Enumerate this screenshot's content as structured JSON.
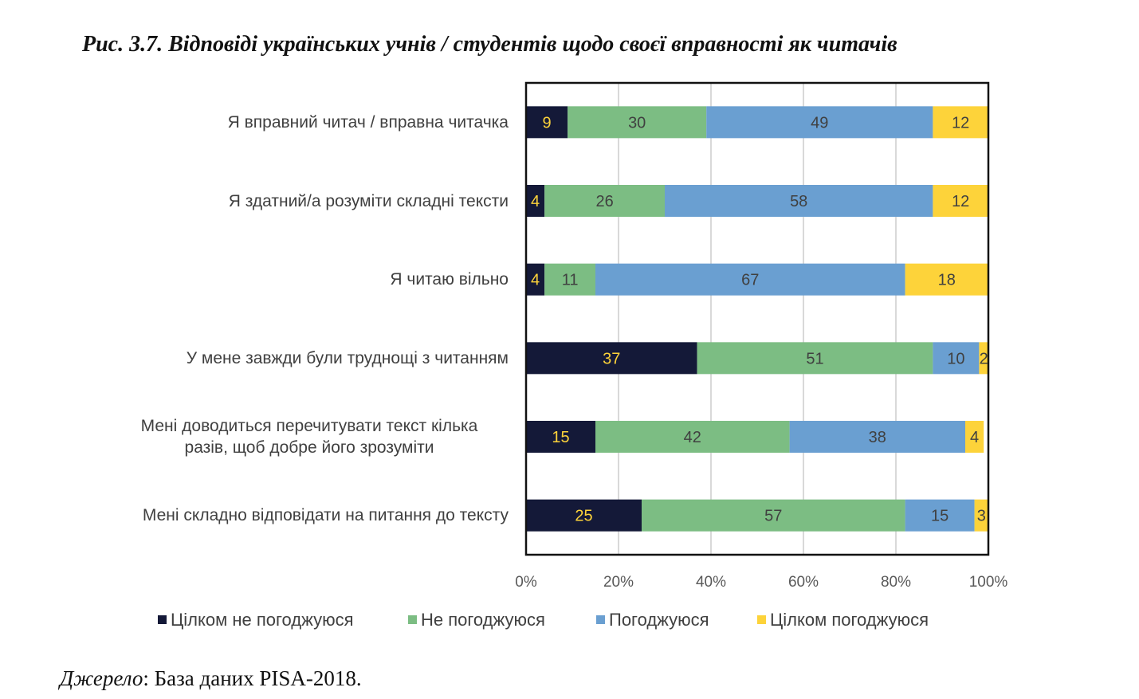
{
  "figure_title": "Рис. 3.7. Відповіді українських учнів / студентів щодо своєї вправності як читачів",
  "source": {
    "prefix": "Джерело",
    "text": ": База даних PISA-2018."
  },
  "colors": {
    "strongly_disagree": "#141938",
    "disagree": "#7cbd83",
    "agree": "#6a9fd1",
    "strongly_agree": "#fdd33a",
    "label_on_dark": "#fdd33a",
    "label_on_light": "#404040"
  },
  "chart_data": {
    "type": "bar",
    "orientation": "horizontal",
    "stacked": "percent",
    "categories": [
      [
        "Я вправний читач / вправна читачка"
      ],
      [
        "Я здатний/а розуміти складні тексти"
      ],
      [
        "Я читаю вільно"
      ],
      [
        "У мене завжди були труднощі з читанням"
      ],
      [
        "Мені доводиться перечитувати текст кілька",
        "разів, щоб добре його зрозуміти"
      ],
      [
        "Мені складно відповідати на питання до тексту"
      ]
    ],
    "series": [
      {
        "name": "Цілком не погоджуюся",
        "color": "#141938",
        "values": [
          9,
          4,
          4,
          37,
          15,
          25
        ]
      },
      {
        "name": "Не погоджуюся",
        "color": "#7cbd83",
        "values": [
          30,
          26,
          11,
          51,
          42,
          57
        ]
      },
      {
        "name": "Погоджуюся",
        "color": "#6a9fd1",
        "values": [
          49,
          58,
          67,
          10,
          38,
          15
        ]
      },
      {
        "name": "Цілком погоджуюся",
        "color": "#fdd33a",
        "values": [
          12,
          12,
          18,
          2,
          4,
          3
        ]
      }
    ],
    "x_ticks": [
      "0%",
      "20%",
      "40%",
      "60%",
      "80%",
      "100%"
    ],
    "xlim": [
      0,
      100
    ],
    "grid": true,
    "legend_position": "bottom"
  }
}
